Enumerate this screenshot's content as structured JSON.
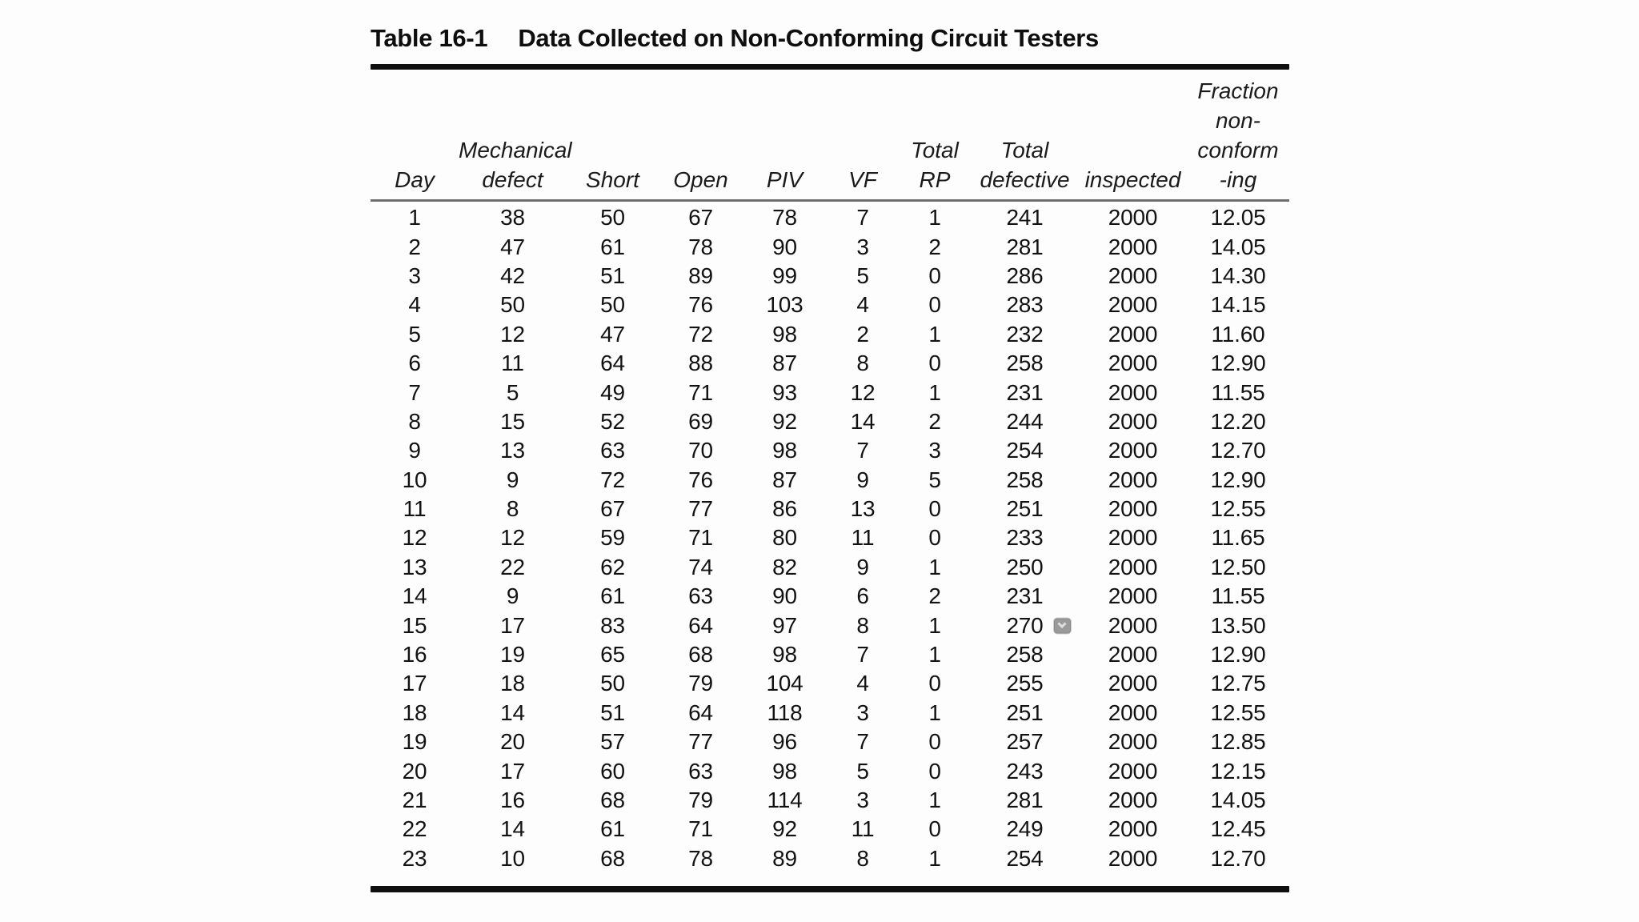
{
  "table": {
    "title_label": "Table 16-1",
    "title_text": "Data Collected on Non-Conforming Circuit Testers",
    "columns": [
      {
        "id": "day",
        "header_lines": [
          "Day"
        ]
      },
      {
        "id": "mechanical-defect",
        "header_lines": [
          "Mechanical",
          "defect"
        ]
      },
      {
        "id": "short",
        "header_lines": [
          "Short"
        ]
      },
      {
        "id": "open",
        "header_lines": [
          "Open"
        ]
      },
      {
        "id": "piv",
        "header_lines": [
          "PIV"
        ]
      },
      {
        "id": "vf",
        "header_lines": [
          "VF"
        ]
      },
      {
        "id": "total-rp",
        "header_lines": [
          "Total",
          "RP"
        ]
      },
      {
        "id": "total-defective",
        "header_lines": [
          "Total",
          "defective"
        ]
      },
      {
        "id": "inspected",
        "header_lines": [
          "inspected"
        ]
      },
      {
        "id": "fraction-nonconforming",
        "header_lines": [
          "Fraction",
          "non-",
          "conform",
          "-ing"
        ]
      }
    ],
    "rows": [
      [
        "1",
        "38",
        "50",
        "67",
        "78",
        "7",
        "1",
        "241",
        "2000",
        "12.05"
      ],
      [
        "2",
        "47",
        "61",
        "78",
        "90",
        "3",
        "2",
        "281",
        "2000",
        "14.05"
      ],
      [
        "3",
        "42",
        "51",
        "89",
        "99",
        "5",
        "0",
        "286",
        "2000",
        "14.30"
      ],
      [
        "4",
        "50",
        "50",
        "76",
        "103",
        "4",
        "0",
        "283",
        "2000",
        "14.15"
      ],
      [
        "5",
        "12",
        "47",
        "72",
        "98",
        "2",
        "1",
        "232",
        "2000",
        "11.60"
      ],
      [
        "6",
        "11",
        "64",
        "88",
        "87",
        "8",
        "0",
        "258",
        "2000",
        "12.90"
      ],
      [
        "7",
        "5",
        "49",
        "71",
        "93",
        "12",
        "1",
        "231",
        "2000",
        "11.55"
      ],
      [
        "8",
        "15",
        "52",
        "69",
        "92",
        "14",
        "2",
        "244",
        "2000",
        "12.20"
      ],
      [
        "9",
        "13",
        "63",
        "70",
        "98",
        "7",
        "3",
        "254",
        "2000",
        "12.70"
      ],
      [
        "10",
        "9",
        "72",
        "76",
        "87",
        "9",
        "5",
        "258",
        "2000",
        "12.90"
      ],
      [
        "11",
        "8",
        "67",
        "77",
        "86",
        "13",
        "0",
        "251",
        "2000",
        "12.55"
      ],
      [
        "12",
        "12",
        "59",
        "71",
        "80",
        "11",
        "0",
        "233",
        "2000",
        "11.65"
      ],
      [
        "13",
        "22",
        "62",
        "74",
        "82",
        "9",
        "1",
        "250",
        "2000",
        "12.50"
      ],
      [
        "14",
        "9",
        "61",
        "63",
        "90",
        "6",
        "2",
        "231",
        "2000",
        "11.55"
      ],
      [
        "15",
        "17",
        "83",
        "64",
        "97",
        "8",
        "1",
        "270",
        "2000",
        "13.50"
      ],
      [
        "16",
        "19",
        "65",
        "68",
        "98",
        "7",
        "1",
        "258",
        "2000",
        "12.90"
      ],
      [
        "17",
        "18",
        "50",
        "79",
        "104",
        "4",
        "0",
        "255",
        "2000",
        "12.75"
      ],
      [
        "18",
        "14",
        "51",
        "64",
        "118",
        "3",
        "1",
        "251",
        "2000",
        "12.55"
      ],
      [
        "19",
        "20",
        "57",
        "77",
        "96",
        "7",
        "0",
        "257",
        "2000",
        "12.85"
      ],
      [
        "20",
        "17",
        "60",
        "63",
        "98",
        "5",
        "0",
        "243",
        "2000",
        "12.15"
      ],
      [
        "21",
        "16",
        "68",
        "79",
        "114",
        "3",
        "1",
        "281",
        "2000",
        "14.05"
      ],
      [
        "22",
        "14",
        "61",
        "71",
        "92",
        "11",
        "0",
        "249",
        "2000",
        "12.45"
      ],
      [
        "23",
        "10",
        "68",
        "78",
        "89",
        "8",
        "1",
        "254",
        "2000",
        "12.70"
      ]
    ],
    "badge": {
      "row_index": 14,
      "col_index": 7,
      "icon_name": "chevron-down-icon"
    }
  },
  "colors": {
    "text": "#161616",
    "rule_heavy": "#0f0f0f",
    "rule_light": "#6f6f6f",
    "badge": "#9a9a9a"
  }
}
